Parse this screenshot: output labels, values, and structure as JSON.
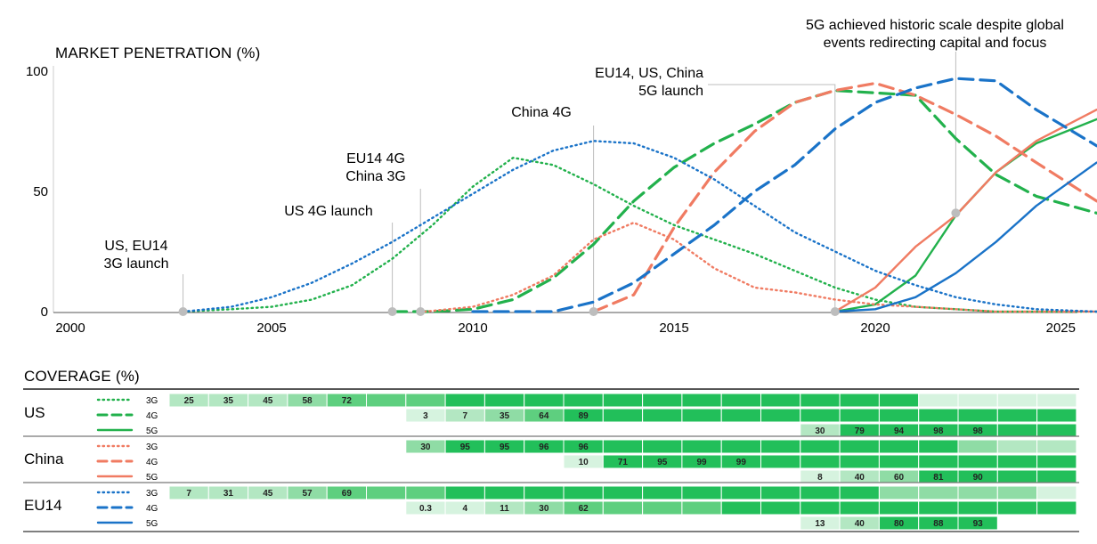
{
  "chart_data": {
    "type": "line",
    "title": "MARKET PENETRATION (%)",
    "x_ticks": [
      "2000",
      "2005",
      "2010",
      "2015",
      "2020",
      "2025"
    ],
    "y_ticks": [
      "100",
      "50",
      "0"
    ],
    "xlim": [
      2000,
      2025.5
    ],
    "ylim": [
      0,
      100
    ],
    "grid": false,
    "colors": {
      "US": "#22b14c",
      "China": "#f07b62",
      "EU14": "#1a73c8"
    },
    "series": [
      {
        "region": "US",
        "gen": "3G",
        "style": "dotted",
        "points": [
          [
            2002.8,
            0
          ],
          [
            2004,
            1
          ],
          [
            2005,
            2
          ],
          [
            2006,
            5
          ],
          [
            2007,
            11
          ],
          [
            2008,
            22
          ],
          [
            2009,
            36
          ],
          [
            2010,
            52
          ],
          [
            2011,
            64
          ],
          [
            2012,
            61
          ],
          [
            2013,
            53
          ],
          [
            2014,
            44
          ],
          [
            2015,
            36
          ],
          [
            2016,
            30
          ],
          [
            2017,
            24
          ],
          [
            2018,
            17
          ],
          [
            2019,
            10
          ],
          [
            2020,
            5
          ],
          [
            2021,
            2
          ],
          [
            2022,
            1
          ],
          [
            2023,
            0
          ],
          [
            2025.5,
            0
          ]
        ]
      },
      {
        "region": "US",
        "gen": "4G",
        "style": "dashed",
        "points": [
          [
            2008,
            0
          ],
          [
            2009,
            0
          ],
          [
            2010,
            1
          ],
          [
            2011,
            5
          ],
          [
            2012,
            14
          ],
          [
            2013,
            28
          ],
          [
            2014,
            46
          ],
          [
            2015,
            60
          ],
          [
            2016,
            70
          ],
          [
            2017,
            78
          ],
          [
            2018,
            87
          ],
          [
            2019,
            92
          ],
          [
            2020,
            91
          ],
          [
            2021,
            90
          ],
          [
            2022,
            72
          ],
          [
            2023,
            57
          ],
          [
            2024,
            48
          ],
          [
            2025.5,
            41
          ]
        ]
      },
      {
        "region": "US",
        "gen": "5G",
        "style": "solid",
        "points": [
          [
            2019,
            0
          ],
          [
            2020,
            3
          ],
          [
            2021,
            15
          ],
          [
            2022,
            40
          ],
          [
            2023,
            58
          ],
          [
            2024,
            70
          ],
          [
            2025.5,
            80
          ]
        ]
      },
      {
        "region": "China",
        "gen": "3G",
        "style": "dotted",
        "points": [
          [
            2008.8,
            0
          ],
          [
            2010,
            2
          ],
          [
            2011,
            7
          ],
          [
            2012,
            15
          ],
          [
            2013,
            30
          ],
          [
            2014,
            37
          ],
          [
            2015,
            30
          ],
          [
            2016,
            18
          ],
          [
            2017,
            10
          ],
          [
            2018,
            8
          ],
          [
            2019,
            5
          ],
          [
            2020,
            3
          ],
          [
            2021,
            2
          ],
          [
            2022,
            1
          ],
          [
            2023,
            0
          ],
          [
            2025.5,
            0
          ]
        ]
      },
      {
        "region": "China",
        "gen": "4G",
        "style": "dashed",
        "points": [
          [
            2013,
            0
          ],
          [
            2014,
            7
          ],
          [
            2015,
            35
          ],
          [
            2016,
            58
          ],
          [
            2017,
            75
          ],
          [
            2018,
            87
          ],
          [
            2019,
            92
          ],
          [
            2020,
            95
          ],
          [
            2021,
            90
          ],
          [
            2022,
            82
          ],
          [
            2023,
            73
          ],
          [
            2024,
            62
          ],
          [
            2025.5,
            46
          ]
        ]
      },
      {
        "region": "China",
        "gen": "5G",
        "style": "solid",
        "points": [
          [
            2019,
            0
          ],
          [
            2020,
            10
          ],
          [
            2021,
            27
          ],
          [
            2022,
            40
          ],
          [
            2023,
            58
          ],
          [
            2024,
            71
          ],
          [
            2025.5,
            84
          ]
        ]
      },
      {
        "region": "EU14",
        "gen": "3G",
        "style": "dotted",
        "points": [
          [
            2002.8,
            0
          ],
          [
            2004,
            2
          ],
          [
            2005,
            6
          ],
          [
            2006,
            12
          ],
          [
            2007,
            20
          ],
          [
            2008,
            29
          ],
          [
            2009,
            39
          ],
          [
            2010,
            49
          ],
          [
            2011,
            59
          ],
          [
            2012,
            67
          ],
          [
            2013,
            71
          ],
          [
            2014,
            70
          ],
          [
            2015,
            64
          ],
          [
            2016,
            55
          ],
          [
            2017,
            44
          ],
          [
            2018,
            33
          ],
          [
            2019,
            25
          ],
          [
            2020,
            17
          ],
          [
            2021,
            11
          ],
          [
            2022,
            6
          ],
          [
            2023,
            3
          ],
          [
            2024,
            1
          ],
          [
            2025.5,
            0
          ]
        ]
      },
      {
        "region": "EU14",
        "gen": "4G",
        "style": "dashed",
        "points": [
          [
            2010,
            0
          ],
          [
            2011,
            0
          ],
          [
            2012,
            0
          ],
          [
            2013,
            4
          ],
          [
            2014,
            12
          ],
          [
            2015,
            24
          ],
          [
            2016,
            36
          ],
          [
            2017,
            50
          ],
          [
            2018,
            61
          ],
          [
            2019,
            76
          ],
          [
            2020,
            87
          ],
          [
            2021,
            93
          ],
          [
            2022,
            97
          ],
          [
            2023,
            96
          ],
          [
            2024,
            84
          ],
          [
            2025.5,
            69
          ]
        ]
      },
      {
        "region": "EU14",
        "gen": "5G",
        "style": "solid",
        "points": [
          [
            2019,
            0
          ],
          [
            2020,
            1
          ],
          [
            2021,
            6
          ],
          [
            2022,
            16
          ],
          [
            2023,
            29
          ],
          [
            2024,
            44
          ],
          [
            2025.5,
            62
          ]
        ]
      }
    ],
    "annotations": [
      {
        "x": 2002.8,
        "y": 0,
        "lines": [
          "US, EU14",
          "3G launch"
        ]
      },
      {
        "x": 2008.0,
        "y": 0,
        "lines": [
          "US 4G launch"
        ]
      },
      {
        "x": 2008.7,
        "y": 0,
        "lines": [
          "EU14 4G",
          "China 3G"
        ]
      },
      {
        "x": 2013.0,
        "y": 0,
        "lines": [
          "China 4G"
        ]
      },
      {
        "x": 2019.0,
        "y": 0,
        "lines": [
          "EU14, US, China",
          "5G launch"
        ]
      },
      {
        "x": 2022.0,
        "y": 41,
        "lines": [
          "5G achieved historic scale despite global",
          "events redirecting capital and focus"
        ]
      }
    ]
  },
  "coverage": {
    "title": "COVERAGE (%)",
    "start_year": 2003,
    "regions": [
      {
        "name": "US",
        "color": "#22b14c",
        "rows": [
          {
            "gen": "3G",
            "style": "dotted",
            "values": [
              "25",
              "35",
              "45",
              "58",
              "72",
              "",
              "",
              "",
              "",
              "",
              "",
              "",
              "",
              "",
              "",
              "",
              "",
              "",
              ""
            ],
            "levels": [
              2,
              2,
              2,
              3,
              4,
              4,
              4,
              5,
              5,
              5,
              5,
              5,
              5,
              5,
              5,
              5,
              5,
              5,
              5,
              1,
              1,
              1,
              1
            ]
          },
          {
            "gen": "4G",
            "style": "dashed",
            "values": [
              "",
              "",
              "",
              "",
              "",
              "",
              "3",
              "7",
              "35",
              "64",
              "89"
            ],
            "levels": [
              0,
              0,
              0,
              0,
              0,
              0,
              1,
              2,
              3,
              4,
              5,
              5,
              5,
              5,
              5,
              5,
              5,
              5,
              5,
              5,
              5,
              5,
              5
            ]
          },
          {
            "gen": "5G",
            "style": "solid",
            "values": [
              "",
              "",
              "",
              "",
              "",
              "",
              "",
              "",
              "",
              "",
              "",
              "",
              "",
              "",
              "",
              "",
              "30",
              "79",
              "94",
              "98",
              "98"
            ],
            "levels": [
              0,
              0,
              0,
              0,
              0,
              0,
              0,
              0,
              0,
              0,
              0,
              0,
              0,
              0,
              0,
              0,
              2,
              5,
              5,
              5,
              5,
              5,
              5
            ]
          }
        ]
      },
      {
        "name": "China",
        "color": "#f07b62",
        "rows": [
          {
            "gen": "3G",
            "style": "dotted",
            "values": [
              "",
              "",
              "",
              "",
              "",
              "",
              "30",
              "95",
              "95",
              "96",
              "96"
            ],
            "levels": [
              0,
              0,
              0,
              0,
              0,
              0,
              3,
              5,
              5,
              5,
              5,
              5,
              5,
              5,
              5,
              5,
              5,
              5,
              5,
              5,
              3,
              2,
              2
            ]
          },
          {
            "gen": "4G",
            "style": "dashed",
            "values": [
              "",
              "",
              "",
              "",
              "",
              "",
              "",
              "",
              "",
              "",
              "10",
              "71",
              "95",
              "99",
              "99"
            ],
            "levels": [
              0,
              0,
              0,
              0,
              0,
              0,
              0,
              0,
              0,
              0,
              1,
              5,
              5,
              5,
              5,
              5,
              5,
              5,
              5,
              5,
              5,
              5,
              5
            ]
          },
          {
            "gen": "5G",
            "style": "solid",
            "values": [
              "",
              "",
              "",
              "",
              "",
              "",
              "",
              "",
              "",
              "",
              "",
              "",
              "",
              "",
              "",
              "",
              "8",
              "40",
              "60",
              "81",
              "90"
            ],
            "levels": [
              0,
              0,
              0,
              0,
              0,
              0,
              0,
              0,
              0,
              0,
              0,
              0,
              0,
              0,
              0,
              0,
              1,
              2,
              3,
              5,
              5,
              5,
              5
            ]
          }
        ]
      },
      {
        "name": "EU14",
        "color": "#1a73c8",
        "rows": [
          {
            "gen": "3G",
            "style": "dotted",
            "values": [
              "7",
              "31",
              "45",
              "57",
              "69"
            ],
            "levels": [
              2,
              2,
              2,
              3,
              4,
              4,
              4,
              5,
              5,
              5,
              5,
              5,
              5,
              5,
              5,
              5,
              5,
              5,
              3,
              3,
              3,
              3,
              1
            ]
          },
          {
            "gen": "4G",
            "style": "dashed",
            "values": [
              "",
              "",
              "",
              "",
              "",
              "",
              "0.3",
              "4",
              "11",
              "30",
              "62"
            ],
            "levels": [
              0,
              0,
              0,
              0,
              0,
              0,
              1,
              1,
              2,
              3,
              4,
              4,
              4,
              4,
              5,
              5,
              5,
              5,
              5,
              5,
              5,
              5,
              5
            ]
          },
          {
            "gen": "5G",
            "style": "solid",
            "values": [
              "",
              "",
              "",
              "",
              "",
              "",
              "",
              "",
              "",
              "",
              "",
              "",
              "",
              "",
              "",
              "",
              "13",
              "40",
              "80",
              "88",
              "93"
            ],
            "levels": [
              0,
              0,
              0,
              0,
              0,
              0,
              0,
              0,
              0,
              0,
              0,
              0,
              0,
              0,
              0,
              0,
              1,
              2,
              5,
              5,
              5,
              0,
              0
            ]
          }
        ]
      }
    ]
  }
}
